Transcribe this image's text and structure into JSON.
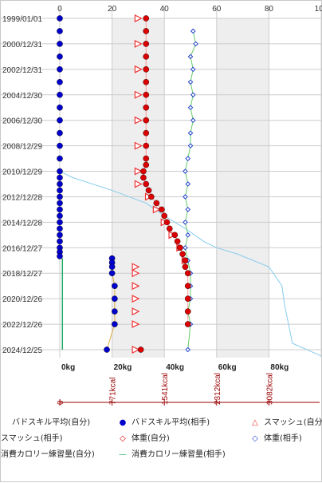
{
  "chart_data": {
    "type": "scatter",
    "y_axis": {
      "type": "date",
      "tick_labels": [
        "1999/01/01",
        "2000/12/31",
        "2002/12/31",
        "2004/12/30",
        "2006/12/30",
        "2008/12/29",
        "2010/12/29",
        "2012/12/28",
        "2014/12/28",
        "2016/12/27",
        "2018/12/27",
        "2020/12/26",
        "2022/12/26",
        "2024/12/25"
      ],
      "range": [
        "1999/01/01",
        "2025/12/31"
      ]
    },
    "x_axis_top": {
      "ticks": [
        0,
        20,
        40,
        60,
        80,
        100
      ],
      "range": [
        0,
        100
      ]
    },
    "x_axis_bottom": {
      "tick_labels": [
        "0kg",
        "20kg",
        "40kg",
        "60kg",
        "80kg"
      ],
      "range_kg": [
        0,
        100
      ]
    },
    "x_axis_kcal": {
      "tick_labels": [
        "0",
        "771kcal",
        "1541kcal",
        "2312kcal",
        "3082kcal"
      ]
    },
    "legend": [
      {
        "label": "バドスキル平均(自分)",
        "symbol": "circle-blue"
      },
      {
        "label": "バドスキル平均(相手)",
        "symbol": "circle-red"
      },
      {
        "label": "スマッシュ(自分)",
        "symbol": "triangle-red"
      },
      {
        "label": "スマッシュ(相手)",
        "symbol": "diamond-red"
      },
      {
        "label": "体重(自分)",
        "symbol": "diamond-blue"
      },
      {
        "label": "体重(相手)",
        "symbol": "diamond-green"
      },
      {
        "label": "消費カロリー練習量(自分)",
        "symbol": "line-green"
      },
      {
        "label": "消費カロリー練習量(相手)",
        "symbol": "line-teal"
      }
    ],
    "colors": {
      "blue_circle": "#0000cc",
      "red_circle": "#dd0000",
      "red_triangle": "#ee3333",
      "blue_diamond": "#2244cc",
      "green_line": "#66cc66",
      "cyan_line": "#88ccee",
      "dark_green_line": "#22aa66",
      "kcal_axis": "#990000",
      "shade": "#eeeeee",
      "grid": "#cccccc"
    },
    "series": [
      {
        "name": "バドスキル平均(自分)",
        "points": [
          [
            "1999/01/01",
            0
          ],
          [
            "2000/01/01",
            0
          ],
          [
            "2000/12/31",
            0
          ],
          [
            "2001/12/31",
            0
          ],
          [
            "2002/12/31",
            0
          ],
          [
            "2003/12/31",
            0
          ],
          [
            "2004/12/30",
            0
          ],
          [
            "2005/12/30",
            0
          ],
          [
            "2006/12/30",
            0
          ],
          [
            "2007/12/30",
            0
          ],
          [
            "2008/12/29",
            0
          ],
          [
            "2009/12/29",
            0
          ],
          [
            "2010/12/29",
            0
          ],
          [
            "2011/06/29",
            0
          ],
          [
            "2011/12/29",
            0
          ],
          [
            "2012/06/28",
            0
          ],
          [
            "2012/12/28",
            0
          ],
          [
            "2013/06/28",
            0
          ],
          [
            "2013/12/28",
            0
          ],
          [
            "2014/06/28",
            0
          ],
          [
            "2014/12/28",
            0
          ],
          [
            "2015/06/28",
            0
          ],
          [
            "2015/12/28",
            0
          ],
          [
            "2016/06/27",
            0
          ],
          [
            "2016/12/27",
            0
          ],
          [
            "2017/04/27",
            0
          ],
          [
            "2017/08/27",
            0
          ],
          [
            "2017/10/27",
            20
          ],
          [
            "2018/02/27",
            20
          ],
          [
            "2018/06/27",
            20
          ],
          [
            "2018/12/27",
            20
          ],
          [
            "2019/12/27",
            21
          ],
          [
            "2020/12/26",
            21
          ],
          [
            "2021/12/26",
            21
          ],
          [
            "2022/12/26",
            21
          ],
          [
            "2024/12/25",
            18
          ]
        ]
      },
      {
        "name": "バドスキル平均(相手)",
        "points": [
          [
            "1999/01/01",
            33
          ],
          [
            "2000/01/01",
            33
          ],
          [
            "2000/12/31",
            33
          ],
          [
            "2001/12/31",
            33
          ],
          [
            "2002/12/31",
            33
          ],
          [
            "2003/12/31",
            33
          ],
          [
            "2004/12/30",
            33
          ],
          [
            "2005/12/30",
            33
          ],
          [
            "2006/12/30",
            33
          ],
          [
            "2007/12/30",
            33
          ],
          [
            "2008/12/29",
            33
          ],
          [
            "2009/12/29",
            33
          ],
          [
            "2010/06/29",
            33
          ],
          [
            "2010/12/29",
            32
          ],
          [
            "2011/06/29",
            32
          ],
          [
            "2011/12/29",
            33
          ],
          [
            "2012/06/28",
            34
          ],
          [
            "2012/12/28",
            35
          ],
          [
            "2013/06/28",
            37
          ],
          [
            "2013/12/28",
            39
          ],
          [
            "2014/06/28",
            40
          ],
          [
            "2014/12/28",
            41
          ],
          [
            "2015/06/28",
            42
          ],
          [
            "2015/12/28",
            44
          ],
          [
            "2016/06/27",
            45
          ],
          [
            "2016/12/27",
            46
          ],
          [
            "2017/06/27",
            47
          ],
          [
            "2017/12/27",
            48
          ],
          [
            "2018/06/27",
            48
          ],
          [
            "2018/12/27",
            49
          ],
          [
            "2019/12/27",
            49
          ],
          [
            "2020/12/26",
            49
          ],
          [
            "2021/12/26",
            49
          ],
          [
            "2022/12/26",
            49
          ],
          [
            "2024/12/25",
            31
          ]
        ]
      },
      {
        "name": "スマッシュ(自分)",
        "points": [
          [
            "1999/01/01",
            30
          ],
          [
            "2000/12/31",
            30
          ],
          [
            "2002/12/31",
            30
          ],
          [
            "2004/12/30",
            30
          ],
          [
            "2006/12/30",
            30
          ],
          [
            "2008/12/29",
            30
          ],
          [
            "2010/12/29",
            30
          ],
          [
            "2011/12/29",
            30
          ],
          [
            "2012/12/28",
            34
          ],
          [
            "2013/12/28",
            37
          ],
          [
            "2014/12/28",
            40
          ],
          [
            "2015/12/28",
            43
          ],
          [
            "2016/12/27",
            46
          ],
          [
            "2017/12/27",
            48
          ],
          [
            "2018/06/27",
            29
          ],
          [
            "2018/12/27",
            29
          ],
          [
            "2019/12/27",
            29
          ],
          [
            "2020/12/26",
            29
          ],
          [
            "2021/12/26",
            29
          ],
          [
            "2022/12/26",
            29
          ],
          [
            "2024/12/25",
            29
          ]
        ]
      },
      {
        "name": "体重(相手)",
        "points": [
          [
            "2000/01/01",
            51
          ],
          [
            "2000/12/31",
            52
          ],
          [
            "2001/12/31",
            50
          ],
          [
            "2002/12/31",
            51
          ],
          [
            "2003/12/31",
            50
          ],
          [
            "2004/12/30",
            51
          ],
          [
            "2005/12/30",
            50
          ],
          [
            "2006/12/30",
            51
          ],
          [
            "2007/12/30",
            50
          ],
          [
            "2008/12/29",
            50
          ],
          [
            "2009/12/29",
            49
          ],
          [
            "2010/12/29",
            48
          ],
          [
            "2011/12/29",
            49
          ],
          [
            "2012/12/28",
            48
          ],
          [
            "2013/12/28",
            49
          ],
          [
            "2014/12/28",
            48
          ],
          [
            "2015/12/28",
            49
          ],
          [
            "2016/12/27",
            48
          ],
          [
            "2017/12/27",
            49
          ],
          [
            "2018/12/27",
            50
          ],
          [
            "2019/12/27",
            50
          ],
          [
            "2020/12/26",
            50
          ],
          [
            "2021/12/26",
            49
          ],
          [
            "2022/12/26",
            50
          ],
          [
            "2024/12/25",
            49
          ]
        ]
      },
      {
        "name": "消費カロリー練習量(相手)",
        "points": [
          [
            "2010/12/29",
            0
          ],
          [
            "2011/06/29",
            5
          ],
          [
            "2012/06/28",
            20
          ],
          [
            "2013/06/28",
            33
          ],
          [
            "2014/06/28",
            40
          ],
          [
            "2015/06/28",
            48
          ],
          [
            "2016/06/27",
            55
          ],
          [
            "2016/12/27",
            60
          ],
          [
            "2017/06/27",
            68
          ],
          [
            "2018/06/27",
            80
          ],
          [
            "2019/12/27",
            85
          ],
          [
            "2021/06/26",
            86
          ],
          [
            "2023/06/26",
            88
          ],
          [
            "2024/06/25",
            89
          ],
          [
            "2025/06/25",
            100
          ]
        ]
      }
    ]
  }
}
